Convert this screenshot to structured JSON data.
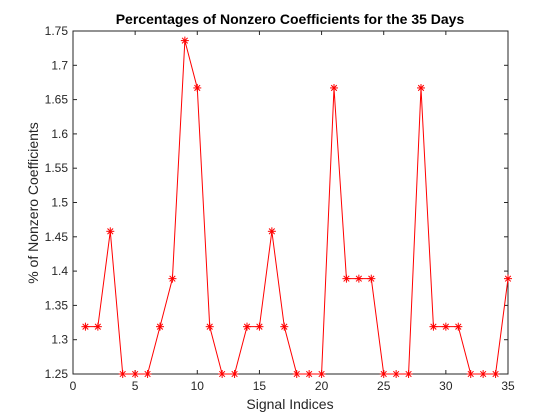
{
  "chart_data": {
    "type": "line",
    "title": "Percentages of Nonzero Coefficients for the 35 Days",
    "xlabel": "Signal Indices",
    "ylabel": "% of Nonzero Coefficients",
    "xlim": [
      0,
      35
    ],
    "ylim": [
      1.25,
      1.75
    ],
    "xticks": [
      "0",
      "5",
      "10",
      "15",
      "20",
      "25",
      "30",
      "35"
    ],
    "yticks": [
      "1.25",
      "1.3",
      "1.35",
      "1.4",
      "1.45",
      "1.5",
      "1.55",
      "1.6",
      "1.65",
      "1.7",
      "1.75"
    ],
    "grid": false,
    "color": "#ff0000",
    "marker": "asterisk",
    "series": [
      {
        "x": [
          1,
          2,
          3,
          4,
          5,
          6,
          7,
          8,
          9,
          10,
          11,
          12,
          13,
          14,
          15,
          16,
          17,
          18,
          19,
          20,
          21,
          22,
          23,
          24,
          25,
          26,
          27,
          28,
          29,
          30,
          31,
          32,
          33,
          34,
          35
        ],
        "y": [
          1.319,
          1.319,
          1.458,
          1.25,
          1.25,
          1.25,
          1.319,
          1.389,
          1.736,
          1.667,
          1.319,
          1.25,
          1.25,
          1.319,
          1.319,
          1.458,
          1.319,
          1.25,
          1.25,
          1.25,
          1.667,
          1.389,
          1.389,
          1.389,
          1.25,
          1.25,
          1.25,
          1.667,
          1.319,
          1.319,
          1.319,
          1.25,
          1.25,
          1.25,
          1.389
        ]
      }
    ]
  }
}
